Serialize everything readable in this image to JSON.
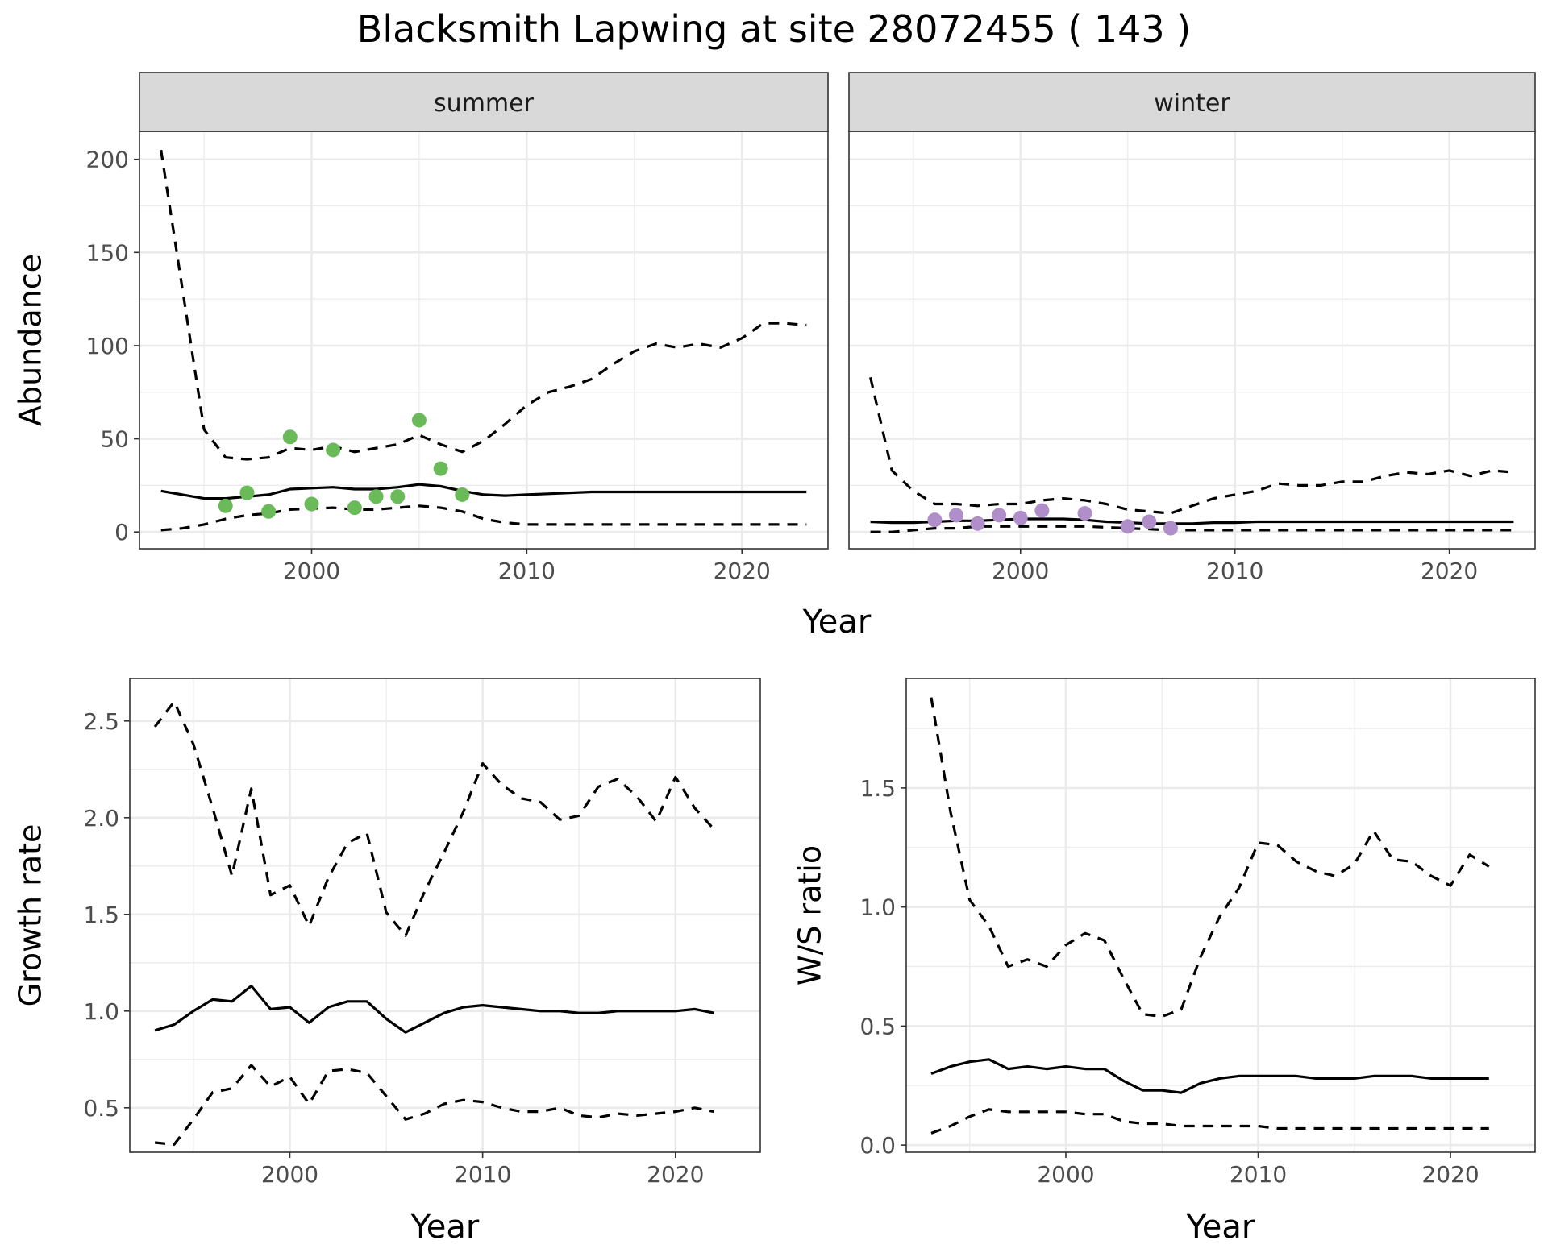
{
  "title": "Blacksmith Lapwing at site 28072455 ( 143 )",
  "colors": {
    "summer_points": "#6aba5a",
    "winter_points": "#b08ec9",
    "strip": "#d9d9d9",
    "grid": "#ebebeb",
    "line": "#000000"
  },
  "chart_data": [
    {
      "type": "line",
      "panel": "summer",
      "xlabel": "Year",
      "ylabel": "Abundance",
      "xlim": [
        1992,
        2024
      ],
      "ylim": [
        -9,
        215
      ],
      "xticks": [
        2000,
        2010,
        2020
      ],
      "yticks": [
        0,
        50,
        100,
        150,
        200
      ],
      "x": [
        1993,
        1994,
        1995,
        1996,
        1997,
        1998,
        1999,
        2000,
        2001,
        2002,
        2003,
        2004,
        2005,
        2006,
        2007,
        2008,
        2009,
        2010,
        2011,
        2012,
        2013,
        2014,
        2015,
        2016,
        2017,
        2018,
        2019,
        2020,
        2021,
        2022,
        2023
      ],
      "series": [
        {
          "style": "solid",
          "values": [
            22,
            20,
            18,
            18,
            19,
            20,
            23,
            23.5,
            24,
            23,
            23,
            24,
            25.5,
            24.5,
            22,
            20,
            19.5,
            20,
            20.5,
            21,
            21.5,
            21.5,
            21.5,
            21.5,
            21.5,
            21.5,
            21.5,
            21.5,
            21.5,
            21.5,
            21.5
          ]
        },
        {
          "style": "dashed",
          "values": [
            205,
            130,
            55,
            40,
            39,
            40,
            45,
            44,
            46,
            43,
            45,
            47,
            52,
            47,
            43,
            49,
            58,
            68,
            75,
            78,
            82,
            90,
            97,
            101,
            99,
            101,
            99,
            104,
            112,
            112,
            111
          ]
        },
        {
          "style": "dashed",
          "values": [
            1,
            2,
            4,
            7,
            9,
            10,
            12,
            12.5,
            13,
            12,
            12,
            13,
            14,
            13,
            11,
            7,
            5,
            4,
            4,
            4,
            4,
            4,
            4,
            4,
            4,
            4,
            4,
            4,
            4,
            4,
            4
          ]
        }
      ],
      "points": {
        "x": [
          1996,
          1997,
          1998,
          1999,
          2000,
          2001,
          2002,
          2003,
          2004,
          2005,
          2006,
          2007
        ],
        "y": [
          14,
          21,
          11,
          51,
          15,
          44,
          13,
          19,
          19,
          60,
          34,
          20
        ]
      }
    },
    {
      "type": "line",
      "panel": "winter",
      "xlabel": "Year",
      "ylabel": "",
      "xlim": [
        1992,
        2024
      ],
      "ylim": [
        -9,
        215
      ],
      "xticks": [
        2000,
        2010,
        2020
      ],
      "yticks": [],
      "x": [
        1993,
        1994,
        1995,
        1996,
        1997,
        1998,
        1999,
        2000,
        2001,
        2002,
        2003,
        2004,
        2005,
        2006,
        2007,
        2008,
        2009,
        2010,
        2011,
        2012,
        2013,
        2014,
        2015,
        2016,
        2017,
        2018,
        2019,
        2020,
        2021,
        2022,
        2023
      ],
      "series": [
        {
          "style": "solid",
          "values": [
            5.5,
            5,
            5,
            5.5,
            6,
            6,
            6.5,
            7,
            7,
            7,
            6.5,
            5.5,
            5,
            4.5,
            4.5,
            4.5,
            5,
            5,
            5.5,
            5.5,
            5.5,
            5.5,
            5.5,
            5.5,
            5.5,
            5.5,
            5.5,
            5.5,
            5.5,
            5.5,
            5.5
          ]
        },
        {
          "style": "dashed",
          "values": [
            83,
            33,
            22,
            15,
            15,
            14,
            15,
            15,
            17,
            18,
            17,
            15,
            12,
            11,
            10,
            14,
            18,
            20,
            22,
            26,
            25,
            25,
            27,
            27,
            30,
            32,
            31,
            33,
            30,
            33,
            32
          ]
        },
        {
          "style": "dashed",
          "values": [
            0,
            0,
            1,
            2,
            2,
            3,
            3,
            3,
            3,
            3,
            3,
            2.5,
            2,
            1.5,
            1,
            1,
            1,
            1,
            1,
            1,
            1,
            1,
            1,
            1,
            1,
            1,
            1,
            1,
            1,
            1,
            1
          ]
        }
      ],
      "points": {
        "x": [
          1996,
          1997,
          1998,
          1999,
          2000,
          2001,
          2003,
          2005,
          2006,
          2007
        ],
        "y": [
          6.5,
          9,
          4.5,
          9,
          7.5,
          11.5,
          10,
          3,
          5.5,
          2
        ]
      }
    },
    {
      "type": "line",
      "panel": "growth",
      "xlabel": "Year",
      "ylabel": "Growth rate",
      "xlim": [
        1991.7,
        2024.4
      ],
      "ylim": [
        0.27,
        2.72
      ],
      "xticks": [
        2000,
        2010,
        2020
      ],
      "yticks": [
        0.5,
        1.0,
        1.5,
        2.0,
        2.5
      ],
      "x": [
        1993,
        1994,
        1995,
        1996,
        1997,
        1998,
        1999,
        2000,
        2001,
        2002,
        2003,
        2004,
        2005,
        2006,
        2007,
        2008,
        2009,
        2010,
        2011,
        2012,
        2013,
        2014,
        2015,
        2016,
        2017,
        2018,
        2019,
        2020,
        2021,
        2022
      ],
      "series": [
        {
          "style": "solid",
          "values": [
            0.9,
            0.93,
            1.0,
            1.06,
            1.05,
            1.13,
            1.01,
            1.02,
            0.94,
            1.02,
            1.05,
            1.05,
            0.96,
            0.89,
            0.94,
            0.99,
            1.02,
            1.03,
            1.02,
            1.01,
            1.0,
            1.0,
            0.99,
            0.99,
            1.0,
            1.0,
            1.0,
            1.0,
            1.01,
            0.99
          ]
        },
        {
          "style": "dashed",
          "values": [
            2.47,
            2.6,
            2.38,
            2.05,
            1.7,
            2.15,
            1.6,
            1.65,
            1.44,
            1.69,
            1.87,
            1.92,
            1.51,
            1.39,
            1.62,
            1.82,
            2.03,
            2.28,
            2.17,
            2.1,
            2.08,
            1.99,
            2.01,
            2.16,
            2.2,
            2.11,
            1.98,
            2.21,
            2.05,
            1.94
          ]
        },
        {
          "style": "dashed",
          "values": [
            0.32,
            0.31,
            0.44,
            0.58,
            0.6,
            0.72,
            0.61,
            0.66,
            0.52,
            0.69,
            0.7,
            0.68,
            0.56,
            0.44,
            0.47,
            0.52,
            0.54,
            0.53,
            0.5,
            0.48,
            0.48,
            0.5,
            0.46,
            0.45,
            0.47,
            0.46,
            0.47,
            0.48,
            0.5,
            0.48
          ]
        }
      ]
    },
    {
      "type": "line",
      "panel": "ratio",
      "xlabel": "Year",
      "ylabel": "W/S ratio",
      "xlim": [
        1991.7,
        2024.4
      ],
      "ylim": [
        -0.03,
        1.96
      ],
      "xticks": [
        2000,
        2010,
        2020
      ],
      "yticks": [
        0.0,
        0.5,
        1.0,
        1.5
      ],
      "x": [
        1993,
        1994,
        1995,
        1996,
        1997,
        1998,
        1999,
        2000,
        2001,
        2002,
        2003,
        2004,
        2005,
        2006,
        2007,
        2008,
        2009,
        2010,
        2011,
        2012,
        2013,
        2014,
        2015,
        2016,
        2017,
        2018,
        2019,
        2020,
        2021,
        2022
      ],
      "series": [
        {
          "style": "solid",
          "values": [
            0.3,
            0.33,
            0.35,
            0.36,
            0.32,
            0.33,
            0.32,
            0.33,
            0.32,
            0.32,
            0.27,
            0.23,
            0.23,
            0.22,
            0.26,
            0.28,
            0.29,
            0.29,
            0.29,
            0.29,
            0.28,
            0.28,
            0.28,
            0.29,
            0.29,
            0.29,
            0.28,
            0.28,
            0.28,
            0.28
          ]
        },
        {
          "style": "dashed",
          "values": [
            1.88,
            1.4,
            1.03,
            0.92,
            0.75,
            0.78,
            0.75,
            0.84,
            0.89,
            0.86,
            0.7,
            0.55,
            0.54,
            0.57,
            0.79,
            0.96,
            1.08,
            1.27,
            1.26,
            1.19,
            1.15,
            1.13,
            1.18,
            1.32,
            1.2,
            1.19,
            1.13,
            1.09,
            1.22,
            1.17
          ]
        },
        {
          "style": "dashed",
          "values": [
            0.05,
            0.08,
            0.12,
            0.15,
            0.14,
            0.14,
            0.14,
            0.14,
            0.13,
            0.13,
            0.1,
            0.09,
            0.09,
            0.08,
            0.08,
            0.08,
            0.08,
            0.08,
            0.07,
            0.07,
            0.07,
            0.07,
            0.07,
            0.07,
            0.07,
            0.07,
            0.07,
            0.07,
            0.07,
            0.07
          ]
        }
      ]
    }
  ]
}
